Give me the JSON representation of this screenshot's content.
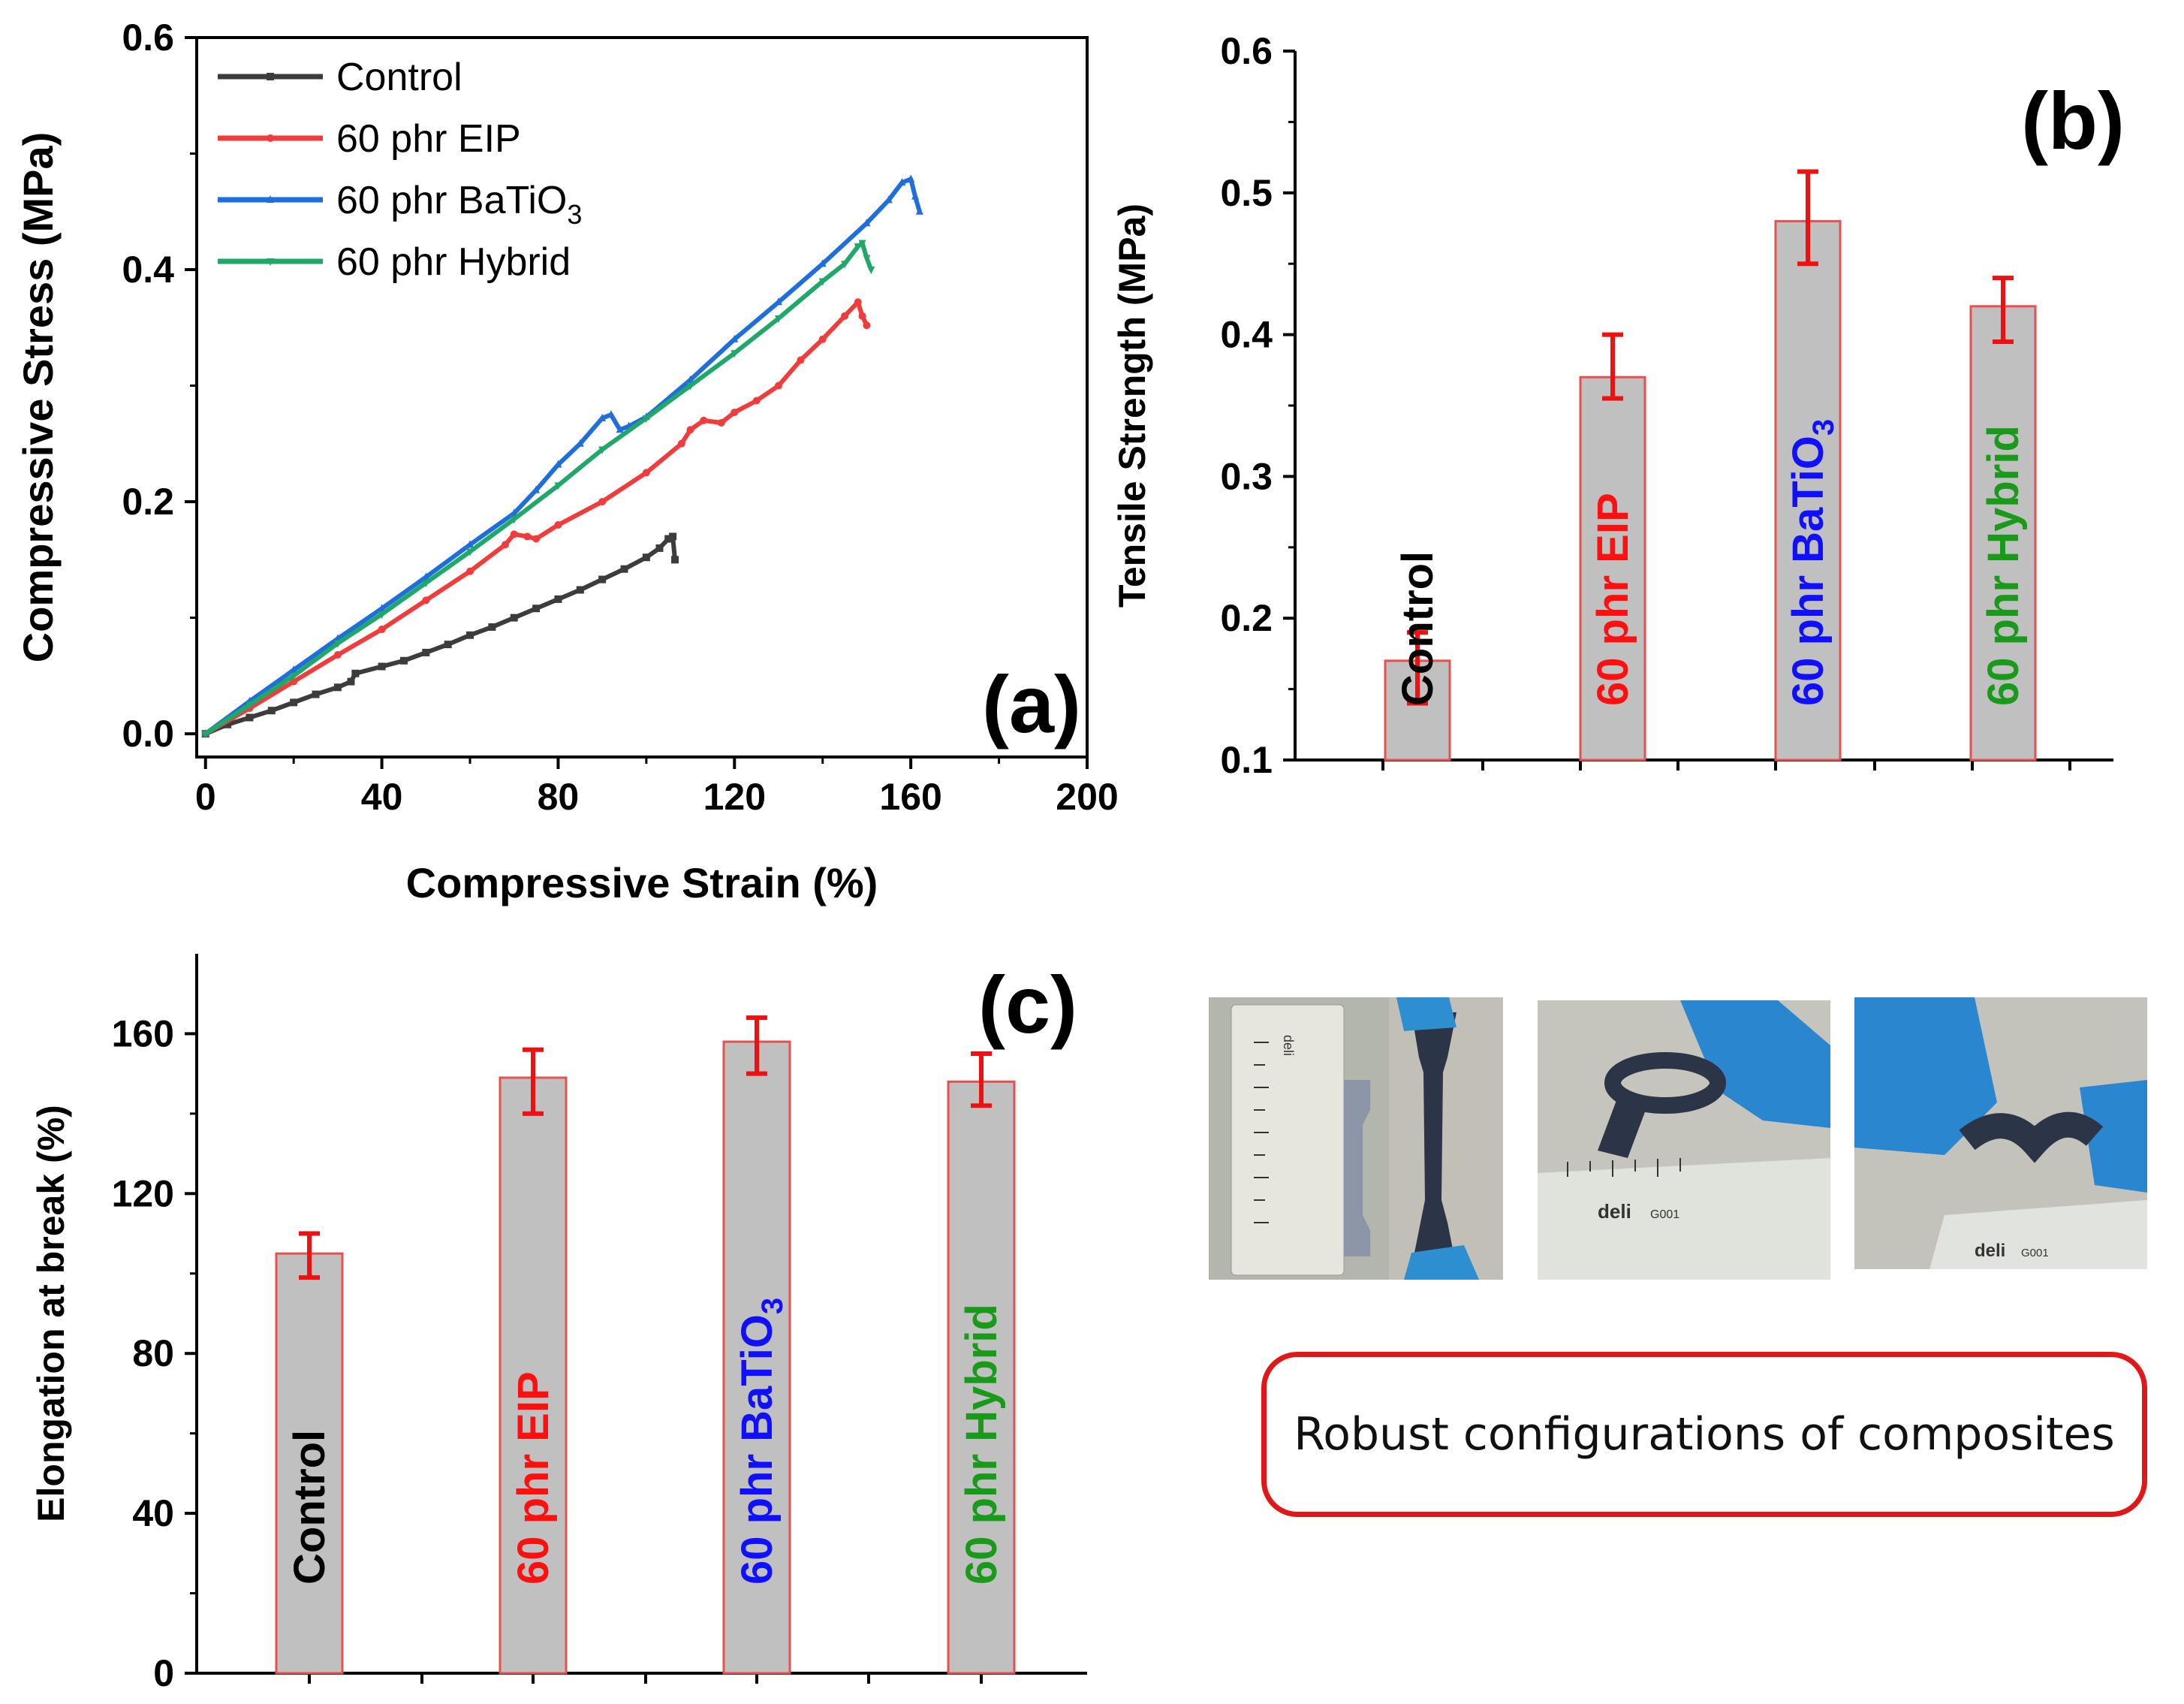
{
  "colors": {
    "control": "#3c3c3c",
    "eip": "#f03c3c",
    "batio3": "#1e6edc",
    "hybrid": "#1fa86a",
    "bar_fill": "#c0c0c0",
    "bar_edge": "#e85050",
    "err": "#ee1111",
    "label_black": "#000000",
    "label_red": "#ff1010",
    "label_blue": "#1010ff",
    "label_green": "#1a9a1a"
  },
  "chart_data": [
    {
      "id": "a",
      "type": "line",
      "panel_label": "(a)",
      "xlabel": "Compressive Strain (%)",
      "ylabel": "Compressive Stress (MPa)",
      "xlim": [
        -2,
        200
      ],
      "ylim": [
        -0.02,
        0.6
      ],
      "xticks": [
        0,
        40,
        80,
        120,
        160,
        200
      ],
      "xtick_labels": [
        "0",
        "40",
        "80",
        "120",
        "160",
        "200"
      ],
      "yticks": [
        0.0,
        0.2,
        0.4,
        0.6
      ],
      "ytick_labels": [
        "0.0",
        "0.2",
        "0.4",
        "0.6"
      ],
      "legend_position": "top-left",
      "series": [
        {
          "name": "Control",
          "legend": "Control",
          "color_key": "control",
          "marker": "square",
          "points": [
            [
              0,
              0
            ],
            [
              5,
              0.008
            ],
            [
              10,
              0.014
            ],
            [
              15,
              0.02
            ],
            [
              20,
              0.027
            ],
            [
              25,
              0.034
            ],
            [
              30,
              0.04
            ],
            [
              33,
              0.045
            ],
            [
              34,
              0.052
            ],
            [
              40,
              0.058
            ],
            [
              45,
              0.063
            ],
            [
              50,
              0.07
            ],
            [
              55,
              0.077
            ],
            [
              60,
              0.085
            ],
            [
              65,
              0.092
            ],
            [
              70,
              0.1
            ],
            [
              75,
              0.108
            ],
            [
              80,
              0.116
            ],
            [
              85,
              0.124
            ],
            [
              90,
              0.133
            ],
            [
              95,
              0.142
            ],
            [
              100,
              0.152
            ],
            [
              103,
              0.16
            ],
            [
              105,
              0.168
            ],
            [
              106,
              0.17
            ],
            [
              106.5,
              0.15
            ]
          ]
        },
        {
          "name": "60 phr EIP",
          "legend": "60 phr EIP",
          "color_key": "eip",
          "marker": "circle",
          "points": [
            [
              0,
              0
            ],
            [
              10,
              0.022
            ],
            [
              20,
              0.045
            ],
            [
              30,
              0.068
            ],
            [
              40,
              0.09
            ],
            [
              50,
              0.115
            ],
            [
              60,
              0.14
            ],
            [
              68,
              0.163
            ],
            [
              70,
              0.172
            ],
            [
              73,
              0.17
            ],
            [
              75,
              0.168
            ],
            [
              80,
              0.18
            ],
            [
              90,
              0.2
            ],
            [
              100,
              0.225
            ],
            [
              108,
              0.25
            ],
            [
              110,
              0.262
            ],
            [
              113,
              0.27
            ],
            [
              117,
              0.268
            ],
            [
              120,
              0.277
            ],
            [
              125,
              0.287
            ],
            [
              130,
              0.3
            ],
            [
              135,
              0.322
            ],
            [
              140,
              0.34
            ],
            [
              145,
              0.36
            ],
            [
              148,
              0.372
            ],
            [
              149,
              0.36
            ],
            [
              150,
              0.352
            ]
          ]
        },
        {
          "name": "60 phr BaTiO3",
          "legend": "60 phr BaTiO",
          "legend_sub": "3",
          "color_key": "batio3",
          "marker": "triangle",
          "points": [
            [
              0,
              0
            ],
            [
              10,
              0.028
            ],
            [
              20,
              0.055
            ],
            [
              30,
              0.082
            ],
            [
              40,
              0.108
            ],
            [
              50,
              0.135
            ],
            [
              60,
              0.163
            ],
            [
              70,
              0.19
            ],
            [
              75,
              0.21
            ],
            [
              80,
              0.232
            ],
            [
              85,
              0.25
            ],
            [
              90,
              0.272
            ],
            [
              92,
              0.275
            ],
            [
              94,
              0.262
            ],
            [
              96,
              0.265
            ],
            [
              100,
              0.273
            ],
            [
              110,
              0.305
            ],
            [
              120,
              0.34
            ],
            [
              130,
              0.372
            ],
            [
              140,
              0.405
            ],
            [
              150,
              0.44
            ],
            [
              155,
              0.46
            ],
            [
              158,
              0.475
            ],
            [
              160,
              0.478
            ],
            [
              161,
              0.463
            ],
            [
              162,
              0.45
            ]
          ]
        },
        {
          "name": "60 phr Hybrid",
          "legend": "60 phr Hybrid",
          "color_key": "hybrid",
          "marker": "triangle-down",
          "points": [
            [
              0,
              0
            ],
            [
              10,
              0.025
            ],
            [
              20,
              0.05
            ],
            [
              30,
              0.078
            ],
            [
              40,
              0.103
            ],
            [
              50,
              0.13
            ],
            [
              60,
              0.157
            ],
            [
              70,
              0.185
            ],
            [
              80,
              0.214
            ],
            [
              90,
              0.245
            ],
            [
              100,
              0.272
            ],
            [
              110,
              0.3
            ],
            [
              120,
              0.328
            ],
            [
              130,
              0.358
            ],
            [
              140,
              0.39
            ],
            [
              145,
              0.405
            ],
            [
              148,
              0.42
            ],
            [
              149,
              0.423
            ],
            [
              150,
              0.41
            ],
            [
              151,
              0.4
            ]
          ]
        }
      ]
    },
    {
      "id": "b",
      "type": "bar",
      "panel_label": "(b)",
      "ylabel": "Tensile Strength (MPa)",
      "ylim": [
        0.1,
        0.6
      ],
      "yticks": [
        0.1,
        0.2,
        0.3,
        0.4,
        0.5,
        0.6
      ],
      "ytick_labels": [
        "0.1",
        "0.2",
        "0.3",
        "0.4",
        "0.5",
        "0.6"
      ],
      "bars": [
        {
          "name": "Control",
          "value": 0.17,
          "err_low": 0.14,
          "err_high": 0.19,
          "label_parts": [
            {
              "text": "Control",
              "color_key": "label_black"
            }
          ]
        },
        {
          "name": "60 phr EIP",
          "value": 0.37,
          "err_low": 0.355,
          "err_high": 0.4,
          "label_parts": [
            {
              "text": "60 phr EIP",
              "color_key": "label_red"
            }
          ]
        },
        {
          "name": "60 phr BaTiO3",
          "value": 0.48,
          "err_low": 0.45,
          "err_high": 0.515,
          "label_parts": [
            {
              "text": "60 phr ",
              "color_key": "label_blue"
            },
            {
              "text": "BaTiO",
              "color_key": "label_blue"
            },
            {
              "text": "3",
              "color_key": "label_blue",
              "sub": true
            }
          ]
        },
        {
          "name": "60 phr Hybrid",
          "value": 0.42,
          "err_low": 0.395,
          "err_high": 0.44,
          "label_parts": [
            {
              "text": "60 phr Hybrid",
              "color_key": "label_green"
            }
          ]
        }
      ]
    },
    {
      "id": "c",
      "type": "bar",
      "panel_label": "(c)",
      "ylabel": "Elongation at break (%)",
      "ylim": [
        0,
        180
      ],
      "yticks": [
        0,
        40,
        80,
        120,
        160
      ],
      "ytick_labels": [
        "0",
        "40",
        "80",
        "120",
        "160"
      ],
      "bars": [
        {
          "name": "Control",
          "value": 105,
          "err_low": 99,
          "err_high": 110,
          "label_parts": [
            {
              "text": "Control",
              "color_key": "label_black"
            }
          ]
        },
        {
          "name": "60 phr EIP",
          "value": 149,
          "err_low": 140,
          "err_high": 156,
          "label_parts": [
            {
              "text": "60 phr EIP",
              "color_key": "label_red"
            }
          ]
        },
        {
          "name": "60 phr BaTiO3",
          "value": 158,
          "err_low": 150,
          "err_high": 164,
          "label_parts": [
            {
              "text": "60 phr ",
              "color_key": "label_blue"
            },
            {
              "text": "BaTiO",
              "color_key": "label_blue"
            },
            {
              "text": "3",
              "color_key": "label_blue",
              "sub": true
            }
          ]
        },
        {
          "name": "60 phr Hybrid",
          "value": 148,
          "err_low": 142,
          "err_high": 155,
          "label_parts": [
            {
              "text": "60 phr Hybrid",
              "color_key": "label_green"
            }
          ]
        }
      ]
    }
  ],
  "photos": [
    {
      "name": "dogbone-specimen-with-ruler",
      "alt": "dog-bone specimens beside a ruler"
    },
    {
      "name": "folded-specimen-on-ruler",
      "alt": "specimen folded by gloved fingers over a ruler"
    },
    {
      "name": "twisted-specimen-over-ruler",
      "alt": "specimen twisted by gloved fingers above a ruler"
    }
  ],
  "photo_texts": {
    "brand": "deli",
    "model": "G001"
  },
  "caption": "Robust configurations of composites"
}
